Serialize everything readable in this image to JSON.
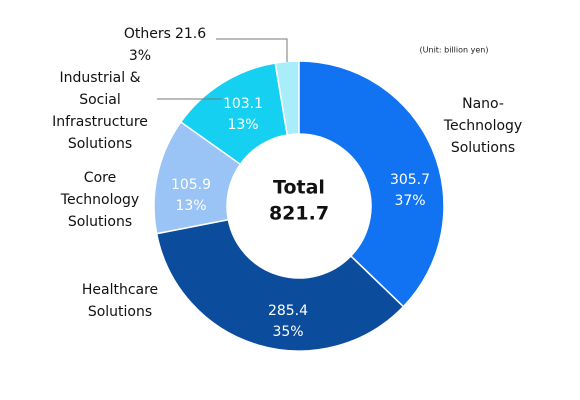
{
  "chart_data": {
    "type": "donut",
    "center_title": "Total",
    "total": 821.7,
    "unit_note": "(Unit: billion yen)",
    "categories": [
      [
        "Nano-",
        "Technology",
        "Solutions"
      ],
      [
        "Healthcare",
        "Solutions"
      ],
      [
        "Core",
        "Technology",
        "Solutions"
      ],
      [
        "Industrial &",
        "Social",
        "Infrastructure",
        "Solutions"
      ],
      [
        "Others"
      ]
    ],
    "values": [
      305.7,
      285.4,
      105.9,
      103.1,
      21.6
    ],
    "percent_labels": [
      "37%",
      "35%",
      "13%",
      "13%",
      "3%"
    ],
    "colors": [
      "#1173f2",
      "#0b4c9c",
      "#9ac3f6",
      "#15d0f1",
      "#a9ecfa"
    ]
  }
}
